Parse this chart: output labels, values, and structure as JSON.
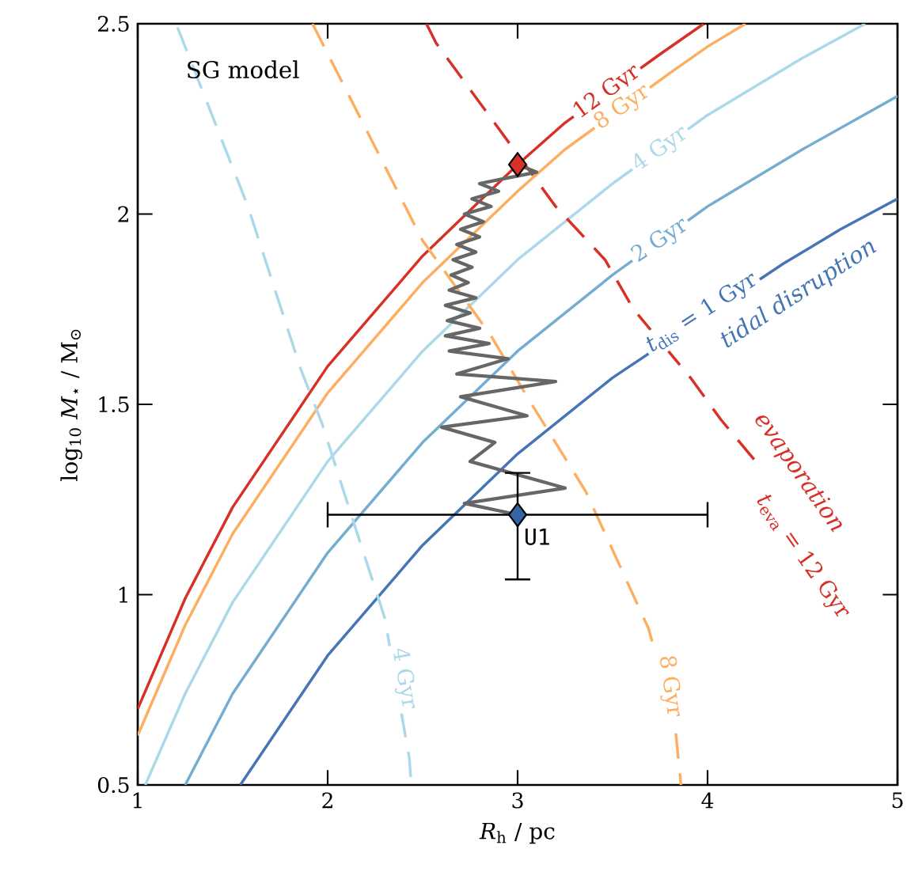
{
  "chart_data": {
    "type": "line",
    "xlabel": "*R*$_{h}$ / pc",
    "ylabel": "log$_{10}$ *M*$_{⋆}$ / M$_{⊙}$",
    "xlim": [
      1,
      5
    ],
    "ylim": [
      0.5,
      2.5
    ],
    "xticks": [
      1,
      2,
      3,
      4,
      5
    ],
    "yticks": [
      0.5,
      1,
      1.5,
      2,
      2.5
    ],
    "grid": false,
    "annotations": [
      "SG model",
      "tidal disruption",
      "evaporation"
    ],
    "series": [
      {
        "name": "12 Gyr",
        "type": "line",
        "line_style": "solid",
        "color": "#d73027",
        "x": [
          1,
          1.25,
          1.5,
          2,
          2.5,
          3,
          3.25,
          3.75,
          3.98
        ],
        "values": [
          0.7,
          0.99,
          1.23,
          1.6,
          1.89,
          2.13,
          2.24,
          2.42,
          2.5
        ]
      },
      {
        "name": "8 Gyr",
        "type": "line",
        "line_style": "solid",
        "color": "#fdae61",
        "x": [
          1,
          1.25,
          1.5,
          2,
          2.5,
          3,
          3.25,
          3.8,
          4,
          4.2
        ],
        "values": [
          0.63,
          0.92,
          1.16,
          1.53,
          1.82,
          2.06,
          2.17,
          2.37,
          2.44,
          2.5
        ]
      },
      {
        "name": "4 Gyr",
        "type": "line",
        "line_style": "solid",
        "color": "#abd9e9",
        "x": [
          1.04,
          1.25,
          1.5,
          2,
          2.5,
          3,
          3.5,
          4,
          4.5,
          4.83
        ],
        "values": [
          0.5,
          0.74,
          0.98,
          1.35,
          1.64,
          1.88,
          2.08,
          2.26,
          2.41,
          2.5
        ]
      },
      {
        "name": "2 Gyr",
        "type": "line",
        "line_style": "solid",
        "color": "#74add1",
        "x": [
          1.25,
          1.5,
          2,
          2.5,
          3,
          3.5,
          4,
          4.5,
          5
        ],
        "values": [
          0.5,
          0.74,
          1.11,
          1.4,
          1.64,
          1.84,
          2.02,
          2.17,
          2.31
        ]
      },
      {
        "name": "*t*$_{dis}$ = 1 Gyr",
        "type": "line",
        "line_style": "solid",
        "color": "#4575b4",
        "x": [
          1.54,
          2,
          2.5,
          3,
          3.5,
          4.4,
          4.7,
          5
        ],
        "values": [
          0.5,
          0.84,
          1.13,
          1.37,
          1.57,
          1.87,
          1.96,
          2.04
        ]
      },
      {
        "name": "*t*$_{eva}$ = 12 Gyr",
        "type": "line",
        "line_style": "dashed",
        "color": "#d73027",
        "x": [
          2.52,
          2.57,
          3.2,
          3.46,
          3.61,
          3.91,
          4.07,
          4.27
        ],
        "values": [
          2.5,
          2.45,
          2.02,
          1.88,
          1.75,
          1.57,
          1.46,
          1.34
        ]
      },
      {
        "name": "8 Gyr",
        "type": "line",
        "line_style": "dashed",
        "color": "#fdae61",
        "x": [
          1.92,
          2.5,
          2.86,
          3.05,
          3.36,
          3.69,
          3.83,
          3.86
        ],
        "values": [
          2.5,
          1.93,
          1.68,
          1.52,
          1.27,
          0.91,
          0.65,
          0.5
        ]
      },
      {
        "name": "4 Gyr",
        "type": "line",
        "line_style": "dashed",
        "color": "#abd9e9",
        "x": [
          1.21,
          1.58,
          1.86,
          1.97,
          2.13,
          2.3,
          2.43,
          2.44
        ],
        "values": [
          2.49,
          2.02,
          1.59,
          1.45,
          1.2,
          0.94,
          0.57,
          0.5
        ]
      },
      {
        "type": "line",
        "line_style": "solid",
        "color": "#666666",
        "x": [
          3.0,
          2.72,
          3.25,
          2.75,
          2.88,
          2.6,
          3.05,
          2.7,
          3.2,
          2.68,
          2.95,
          2.64,
          2.85,
          2.62,
          2.8,
          2.63,
          2.75,
          2.62,
          2.78,
          2.64,
          2.74,
          2.65,
          2.76,
          2.66,
          2.78,
          2.68,
          2.8,
          2.7,
          2.82,
          2.72,
          2.86,
          2.76,
          2.9,
          2.8,
          2.9,
          3.1,
          3.0
        ],
        "values": [
          1.21,
          1.24,
          1.28,
          1.35,
          1.4,
          1.44,
          1.47,
          1.52,
          1.56,
          1.58,
          1.62,
          1.64,
          1.66,
          1.68,
          1.7,
          1.72,
          1.74,
          1.76,
          1.78,
          1.8,
          1.82,
          1.84,
          1.86,
          1.88,
          1.9,
          1.92,
          1.94,
          1.96,
          1.98,
          2.0,
          2.02,
          2.04,
          2.06,
          2.08,
          2.09,
          2.11,
          2.13
        ]
      },
      {
        "type": "scatter",
        "marker": "diamond",
        "color": "#d73027",
        "x": [
          3
        ],
        "values": [
          2.13
        ]
      },
      {
        "name": "U1",
        "type": "scatter",
        "marker": "diamond",
        "color": "#3465a4",
        "x": [
          3
        ],
        "values": [
          1.21
        ],
        "errors": [
          [
            1.04,
            1.32
          ]
        ],
        "xerrors": [
          [
            2,
            4
          ]
        ]
      }
    ]
  }
}
